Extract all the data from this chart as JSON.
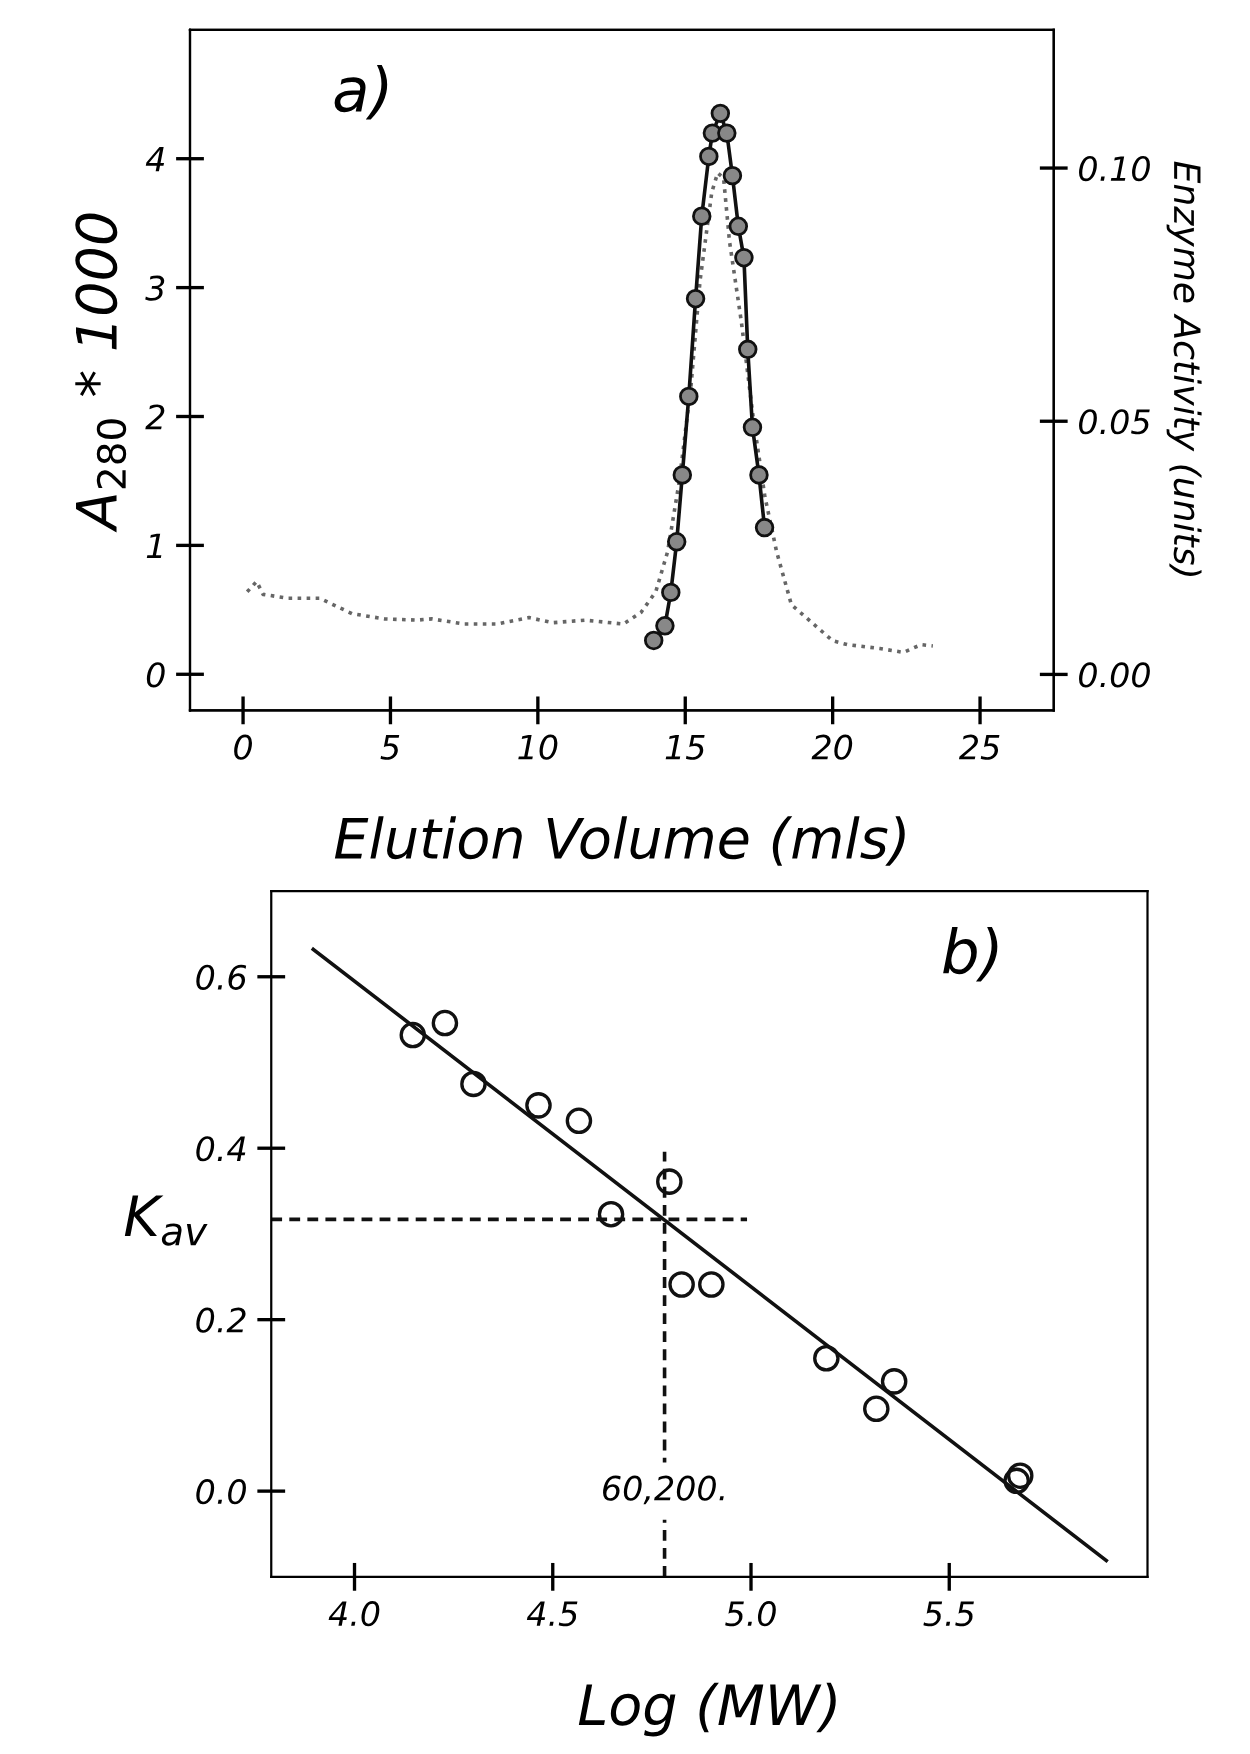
{
  "chart_data": [
    {
      "type": "line",
      "xlabel": "Elution Volume (mls)",
      "ylabel": "A$_{280}$ * 1000",
      "y2label": "Enzyme Activity (units)",
      "annotations": [
        "a)"
      ],
      "xlim": [
        -1.8,
        27.5
      ],
      "xticks": [
        0,
        5,
        10,
        15,
        20,
        25
      ],
      "ylim": [
        -0.28,
        5.0
      ],
      "yticks": [
        0,
        1,
        2,
        3,
        4
      ],
      "y2lim": [
        -0.0071,
        0.1273
      ],
      "y2ticks": [
        {
          "value": 0,
          "label": "0.00"
        },
        {
          "value": 0.05,
          "label": "0.05"
        },
        {
          "value": 0.1,
          "label": "0.10"
        }
      ],
      "grid": false,
      "series": [
        {
          "color": "#666666",
          "line_style": "dotted",
          "marker": "none",
          "x": [
            0.14,
            0.46,
            0.68,
            1.5,
            2.6,
            3.7,
            4.8,
            5.9,
            6.4,
            7.5,
            8.6,
            9.7,
            10.5,
            11.6,
            12.9,
            13.5,
            14.0,
            14.4,
            14.8,
            15.2,
            15.5,
            15.9,
            16.1,
            16.3,
            16.5,
            16.9,
            17.3,
            17.7,
            18.1,
            18.6,
            19.2,
            20.0,
            20.5,
            21.6,
            22.4,
            23.0,
            23.4
          ],
          "values": [
            0.64,
            0.72,
            0.62,
            0.59,
            0.59,
            0.47,
            0.43,
            0.42,
            0.43,
            0.39,
            0.39,
            0.44,
            0.4,
            0.42,
            0.39,
            0.48,
            0.64,
            0.95,
            1.5,
            2.25,
            3.05,
            3.74,
            3.89,
            3.85,
            3.36,
            2.74,
            2.0,
            1.38,
            0.95,
            0.54,
            0.42,
            0.26,
            0.23,
            0.2,
            0.17,
            0.23,
            0.22
          ]
        },
        {
          "axis": "y2",
          "color": "#111111",
          "line_style": "solid",
          "marker": "circle",
          "x": [
            13.93,
            14.31,
            14.51,
            14.71,
            14.9,
            15.12,
            15.35,
            15.56,
            15.8,
            15.92,
            16.19,
            16.41,
            16.6,
            16.8,
            16.99,
            17.12,
            17.28,
            17.5,
            17.69
          ],
          "values": [
            0.0067,
            0.0096,
            0.0162,
            0.0262,
            0.0394,
            0.0549,
            0.0742,
            0.0905,
            0.1023,
            0.1069,
            0.1108,
            0.1069,
            0.0985,
            0.0885,
            0.0823,
            0.0642,
            0.0488,
            0.0394,
            0.029
          ]
        }
      ]
    },
    {
      "type": "scatter",
      "xlabel": "Log (MW)",
      "ylabel": "K$_{av}$",
      "annotations": [
        "b)",
        {
          "text": "60,200.",
          "x": 4.782,
          "y": 0.0
        }
      ],
      "xlim": [
        3.79,
        6.0
      ],
      "xticks": [
        {
          "value": 4.0,
          "label": "4.0"
        },
        {
          "value": 4.5,
          "label": "4.5"
        },
        {
          "value": 5.0,
          "label": "5.0"
        },
        {
          "value": 5.5,
          "label": "5.5"
        }
      ],
      "ylim": [
        -0.1,
        0.7
      ],
      "yticks": [
        {
          "value": 0.0,
          "label": "0.0"
        },
        0.2,
        0.4,
        0.6
      ],
      "grid": false,
      "series": [
        {
          "color": "#111111",
          "marker": "circle",
          "x": [
            4.147,
            4.228,
            4.3,
            4.464,
            4.566,
            4.647,
            4.794,
            4.825,
            4.9,
            5.19,
            5.316,
            5.361,
            5.67,
            5.679
          ],
          "values": [
            0.532,
            0.546,
            0.475,
            0.45,
            0.432,
            0.323,
            0.361,
            0.241,
            0.241,
            0.155,
            0.096,
            0.128,
            0.012,
            0.018
          ]
        },
        {
          "type": "line",
          "color": "#111111",
          "line_style": "solid",
          "marker": "none",
          "x": [
            3.896,
            5.896
          ],
          "values": [
            0.632,
            -0.081
          ]
        },
        {
          "type": "line",
          "color": "#111111",
          "line_style": "dashed",
          "marker": "none",
          "x": [
            3.79,
            4.99
          ],
          "values": [
            0.317,
            0.317
          ]
        },
        {
          "type": "line",
          "color": "#111111",
          "line_style": "dashed",
          "marker": "none",
          "x": [
            4.782,
            4.782
          ],
          "values": [
            -0.1,
            0.396
          ]
        }
      ]
    }
  ]
}
